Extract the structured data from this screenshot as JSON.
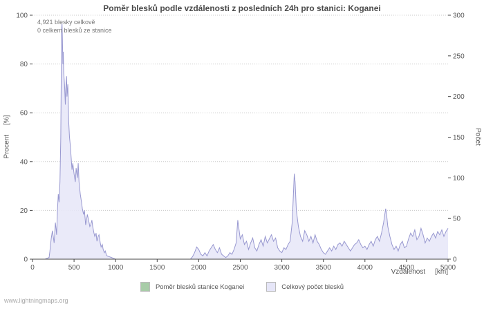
{
  "title": "Poměr blesků podle vzdálenosti z posledních 24h pro stanici: Koganei",
  "annotations": [
    "4,921 blesky celkově",
    "0 celkem blesků ze stanice"
  ],
  "axes": {
    "left": {
      "label": "Procent",
      "unit": "[%]",
      "ticks": [
        0,
        20,
        40,
        60,
        80,
        100
      ]
    },
    "right": {
      "label": "Počet",
      "ticks": [
        0,
        50,
        100,
        150,
        200,
        250,
        300
      ]
    },
    "x": {
      "label": "Vzdálenost",
      "unit": "[km]",
      "ticks": [
        0,
        500,
        1000,
        1500,
        2000,
        2500,
        3000,
        3500,
        4000,
        4500,
        5000
      ]
    }
  },
  "legend": [
    {
      "label": "Poměr blesků stanice Koganei",
      "color": "#a8cca8"
    },
    {
      "label": "Celkový počet blesků",
      "color": "#e6e6f8"
    }
  ],
  "footer": "www.lightningmaps.org",
  "colors": {
    "area_fill": "#e6e6f8",
    "area_line": "#9898d0",
    "grid": "#c8c8c8",
    "axis": "#444444"
  },
  "chart_data": {
    "type": "area",
    "title": "Poměr blesků podle vzdálenosti z posledních 24h pro stanici: Koganei",
    "xlabel": "Vzdálenost [km]",
    "ylabel_left": "Procent [%]",
    "ylabel_right": "Počet",
    "xlim": [
      0,
      5000
    ],
    "ylim_left": [
      0,
      100
    ],
    "ylim_right": [
      0,
      300
    ],
    "grid": "horizontal-dotted",
    "legend_position": "bottom",
    "x": [
      0,
      150,
      200,
      210,
      225,
      240,
      250,
      260,
      275,
      290,
      300,
      310,
      320,
      330,
      340,
      350,
      355,
      360,
      365,
      370,
      375,
      385,
      395,
      400,
      410,
      415,
      425,
      435,
      445,
      455,
      465,
      475,
      485,
      500,
      515,
      525,
      540,
      550,
      560,
      575,
      590,
      600,
      615,
      625,
      640,
      650,
      660,
      675,
      690,
      700,
      715,
      725,
      740,
      750,
      765,
      775,
      790,
      800,
      815,
      825,
      840,
      850,
      865,
      875,
      890,
      900,
      925,
      950,
      975,
      1000,
      1900,
      1925,
      1950,
      1975,
      2000,
      2025,
      2050,
      2075,
      2100,
      2125,
      2150,
      2175,
      2200,
      2225,
      2250,
      2275,
      2300,
      2325,
      2350,
      2375,
      2400,
      2425,
      2450,
      2470,
      2480,
      2500,
      2525,
      2550,
      2575,
      2600,
      2625,
      2650,
      2675,
      2700,
      2725,
      2750,
      2775,
      2800,
      2825,
      2850,
      2875,
      2900,
      2925,
      2950,
      2975,
      3000,
      3025,
      3050,
      3075,
      3100,
      3125,
      3150,
      3160,
      3175,
      3200,
      3225,
      3250,
      3275,
      3300,
      3325,
      3350,
      3375,
      3400,
      3425,
      3450,
      3475,
      3500,
      3525,
      3550,
      3575,
      3600,
      3625,
      3650,
      3675,
      3700,
      3725,
      3750,
      3775,
      3800,
      3825,
      3850,
      3875,
      3900,
      3925,
      3950,
      3975,
      4000,
      4025,
      4050,
      4075,
      4100,
      4125,
      4150,
      4175,
      4200,
      4225,
      4250,
      4260,
      4275,
      4300,
      4325,
      4350,
      4375,
      4400,
      4425,
      4450,
      4475,
      4500,
      4525,
      4550,
      4575,
      4600,
      4625,
      4650,
      4675,
      4700,
      4725,
      4750,
      4775,
      4800,
      4825,
      4850,
      4875,
      4900,
      4925,
      4950,
      4975,
      5000
    ],
    "series": [
      {
        "name": "Celkový počet blesků",
        "axis": "right",
        "fill_color": "#e6e6f8",
        "line_color": "#9898d0",
        "values": [
          0,
          0,
          2,
          10,
          25,
          35,
          28,
          20,
          45,
          30,
          60,
          80,
          70,
          95,
          150,
          283,
          290,
          270,
          240,
          255,
          230,
          215,
          190,
          210,
          225,
          200,
          215,
          170,
          150,
          140,
          125,
          110,
          118,
          105,
          95,
          112,
          100,
          118,
          95,
          80,
          70,
          62,
          55,
          60,
          42,
          48,
          55,
          48,
          40,
          42,
          48,
          40,
          32,
          28,
          32,
          22,
          28,
          30,
          20,
          15,
          18,
          12,
          8,
          10,
          5,
          4,
          3,
          2,
          1,
          0,
          0,
          3,
          8,
          15,
          12,
          6,
          4,
          8,
          4,
          10,
          14,
          18,
          12,
          8,
          14,
          6,
          4,
          2,
          4,
          8,
          6,
          12,
          20,
          48,
          40,
          25,
          30,
          18,
          22,
          12,
          20,
          26,
          14,
          10,
          18,
          24,
          16,
          28,
          20,
          25,
          30,
          22,
          26,
          14,
          10,
          8,
          14,
          12,
          18,
          22,
          45,
          105,
          95,
          60,
          40,
          28,
          22,
          35,
          30,
          22,
          28,
          20,
          30,
          22,
          18,
          12,
          8,
          6,
          10,
          14,
          10,
          16,
          12,
          18,
          20,
          16,
          22,
          18,
          14,
          10,
          14,
          18,
          20,
          24,
          18,
          14,
          16,
          12,
          18,
          22,
          16,
          24,
          28,
          22,
          32,
          45,
          62,
          55,
          40,
          28,
          18,
          12,
          16,
          10,
          18,
          22,
          14,
          16,
          25,
          32,
          28,
          36,
          24,
          28,
          38,
          30,
          20,
          26,
          22,
          28,
          32,
          26,
          34,
          30,
          36,
          28,
          34,
          38
        ]
      },
      {
        "name": "Poměr blesků stanice Koganei",
        "axis": "left",
        "line_color": "#a8cca8",
        "constant_value": 0
      }
    ]
  }
}
